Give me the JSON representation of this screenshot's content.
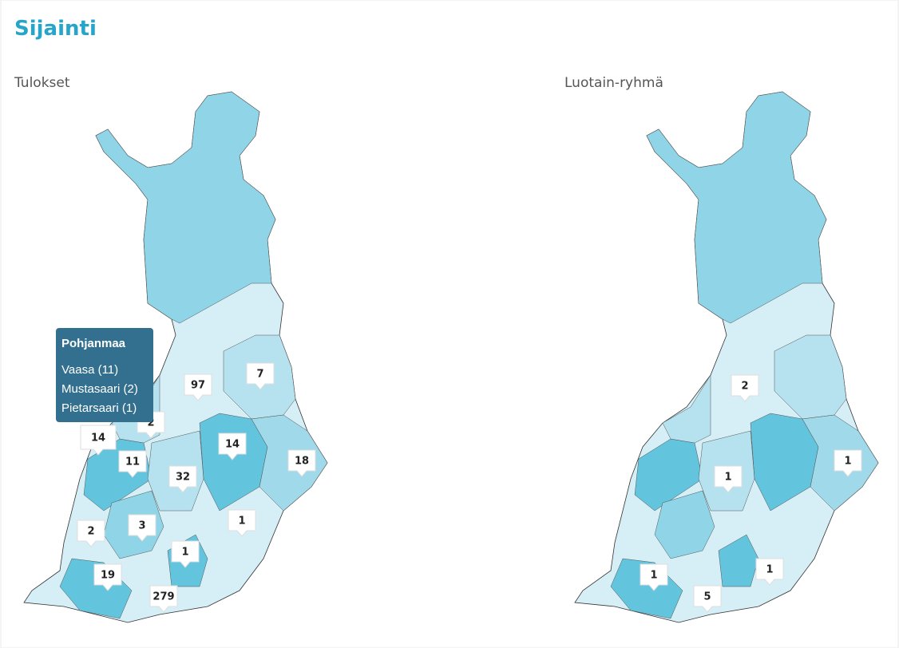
{
  "header": {
    "title": "Sijainti"
  },
  "maps": [
    {
      "title": "Tulokset",
      "markers": [
        97,
        7,
        2,
        14,
        11,
        32,
        14,
        18,
        1,
        3,
        2,
        1,
        19,
        279
      ]
    },
    {
      "title": "Luotain-ryhmä",
      "markers": [
        2,
        1,
        1,
        1,
        1,
        5
      ]
    }
  ],
  "tooltip": {
    "title": "Pohjanmaa",
    "items": [
      "Vaasa (11)",
      "Mustasaari (2)",
      "Pietarsaari (1)"
    ]
  }
}
